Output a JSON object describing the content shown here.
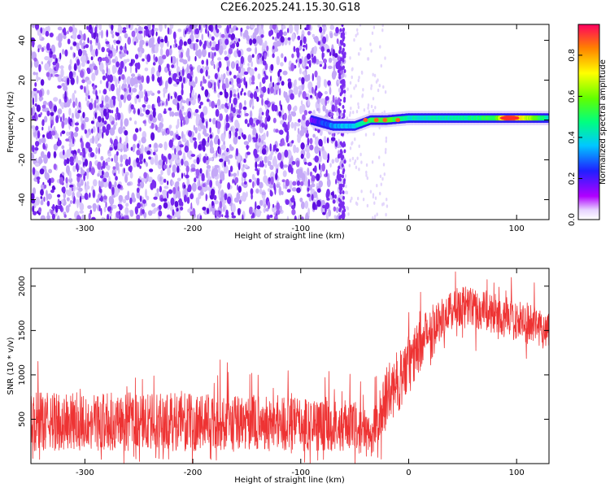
{
  "figure_title": "C2E6.2025.241.15.30.G18",
  "colors": {
    "snr_line": "#ee3333",
    "noise_dots": "#7a2cf0",
    "signal_core": "#ff2a2a"
  },
  "chart_data": [
    {
      "type": "heatmap",
      "title": "C2E6.2025.241.15.30.G18",
      "xlabel": "Height of straight line (km)",
      "ylabel": "Frequency (Hz)",
      "xlim": [
        -350,
        130
      ],
      "ylim": [
        -50,
        48
      ],
      "x_ticks": [
        -300,
        -200,
        -100,
        0,
        100
      ],
      "y_ticks": [
        -40,
        -20,
        0,
        20,
        40
      ],
      "colorbar": {
        "label": "Normalized spectral amplitude",
        "range": [
          0,
          0.95
        ],
        "ticks": [
          0.0,
          0.2,
          0.4,
          0.6,
          0.8
        ],
        "colormap": "rainbow (white-magenta-blue-cyan-green-yellow-red)"
      },
      "noise_region": {
        "x_range": [
          -350,
          -60
        ],
        "freq_range": [
          -50,
          48
        ],
        "amplitude": 0.05
      },
      "signal_track": [
        {
          "x": -90,
          "freq": 0,
          "amp": 0.15
        },
        {
          "x": -70,
          "freq": -3,
          "amp": 0.35
        },
        {
          "x": -50,
          "freq": -3,
          "amp": 0.4
        },
        {
          "x": -35,
          "freq": 0,
          "amp": 0.55
        },
        {
          "x": -20,
          "freq": 0,
          "amp": 0.6
        },
        {
          "x": 0,
          "freq": 1,
          "amp": 0.45
        },
        {
          "x": 40,
          "freq": 1,
          "amp": 0.45
        },
        {
          "x": 80,
          "freq": 1,
          "amp": 0.55
        },
        {
          "x": 92,
          "freq": 1,
          "amp": 0.92
        },
        {
          "x": 130,
          "freq": 1,
          "amp": 0.45
        }
      ]
    },
    {
      "type": "line",
      "xlabel": "Height of straight line (km)",
      "ylabel": "SNR (10 * v/v)",
      "xlim": [
        -350,
        130
      ],
      "ylim": [
        0,
        2200
      ],
      "x_ticks": [
        -300,
        -200,
        -100,
        0,
        100
      ],
      "y_ticks": [
        500,
        1000,
        1500,
        2000
      ],
      "envelope": [
        {
          "x": -350,
          "center": 470,
          "spread": 330
        },
        {
          "x": -250,
          "center": 470,
          "spread": 330
        },
        {
          "x": -150,
          "center": 460,
          "spread": 320
        },
        {
          "x": -80,
          "center": 440,
          "spread": 300
        },
        {
          "x": -50,
          "center": 420,
          "spread": 280
        },
        {
          "x": -35,
          "center": 300,
          "spread": 250
        },
        {
          "x": -20,
          "center": 750,
          "spread": 350
        },
        {
          "x": 0,
          "center": 1100,
          "spread": 350
        },
        {
          "x": 20,
          "center": 1550,
          "spread": 250
        },
        {
          "x": 50,
          "center": 1800,
          "spread": 230
        },
        {
          "x": 90,
          "center": 1650,
          "spread": 230
        },
        {
          "x": 130,
          "center": 1500,
          "spread": 220
        }
      ]
    }
  ]
}
